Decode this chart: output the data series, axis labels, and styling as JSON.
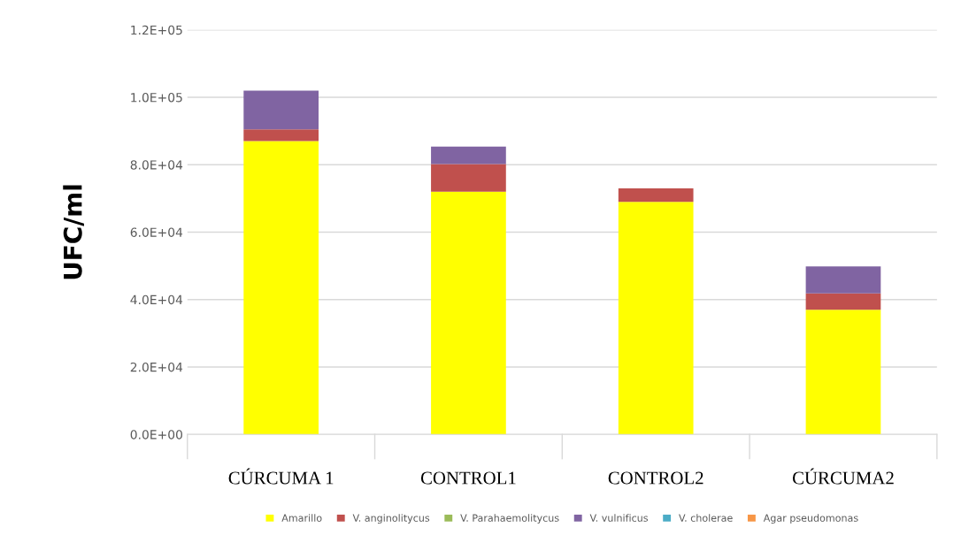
{
  "chart_data": {
    "type": "bar",
    "stacked": true,
    "ylabel": "UFC/ml",
    "categories": [
      "CÚRCUMA 1",
      "CONTROL1",
      "CONTROL2",
      "CÚRCUMA2"
    ],
    "series": [
      {
        "name": "Amarillo",
        "color": "#ffff00",
        "values": [
          87000,
          72000,
          69000,
          37000
        ]
      },
      {
        "name": "V. anginolitycus",
        "color": "#c0504d",
        "values": [
          3500,
          8200,
          4000,
          4800
        ]
      },
      {
        "name": "V. Parahaemolitycus",
        "color": "#9bbb59",
        "values": [
          0,
          0,
          0,
          0
        ]
      },
      {
        "name": "V. vulnificus",
        "color": "#8064a2",
        "values": [
          11500,
          5200,
          0,
          8000
        ]
      },
      {
        "name": "V. cholerae",
        "color": "#4bacc6",
        "values": [
          0,
          0,
          0,
          0
        ]
      },
      {
        "name": "Agar pseudomonas",
        "color": "#f79646",
        "values": [
          0,
          0,
          0,
          0
        ]
      }
    ],
    "ylim": [
      0,
      120000
    ],
    "yticks": [
      {
        "value": 0,
        "label": "0.0E+00"
      },
      {
        "value": 20000,
        "label": "2.0E+04"
      },
      {
        "value": 40000,
        "label": "4.0E+04"
      },
      {
        "value": 60000,
        "label": "6.0E+04"
      },
      {
        "value": 80000,
        "label": "8.0E+04"
      },
      {
        "value": 100000,
        "label": "1.0E+05"
      },
      {
        "value": 120000,
        "label": "1.2E+05"
      }
    ],
    "grid": "y",
    "legend": "bottom"
  }
}
